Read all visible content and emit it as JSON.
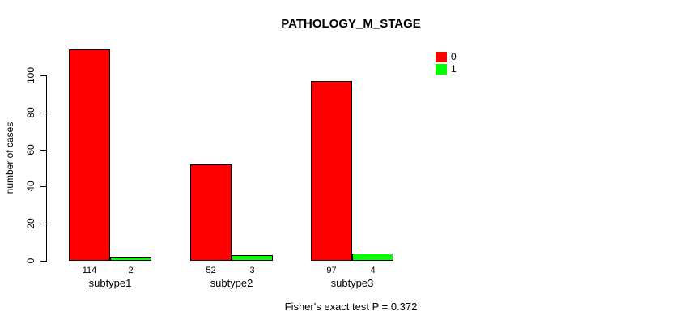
{
  "chart_data": {
    "type": "bar",
    "title": "PATHOLOGY_M_STAGE",
    "ylabel": "number of cases",
    "xlabel": "",
    "categories": [
      "subtype1",
      "subtype2",
      "subtype3"
    ],
    "series": [
      {
        "name": "0",
        "color": "#FF0000",
        "values": [
          114,
          52,
          97
        ]
      },
      {
        "name": "1",
        "color": "#00FF00",
        "values": [
          2,
          3,
          4
        ]
      }
    ],
    "yticks": [
      0,
      20,
      40,
      60,
      80,
      100
    ],
    "ylim": [
      0,
      120
    ],
    "grid": false,
    "bar_value_labels": true,
    "legend_position": "top-right",
    "annotation": "Fisher's exact test P = 0.372"
  },
  "colors": {
    "series0": "#FF0000",
    "series1": "#00FF00",
    "axis": "#000000",
    "background": "#ffffff"
  }
}
